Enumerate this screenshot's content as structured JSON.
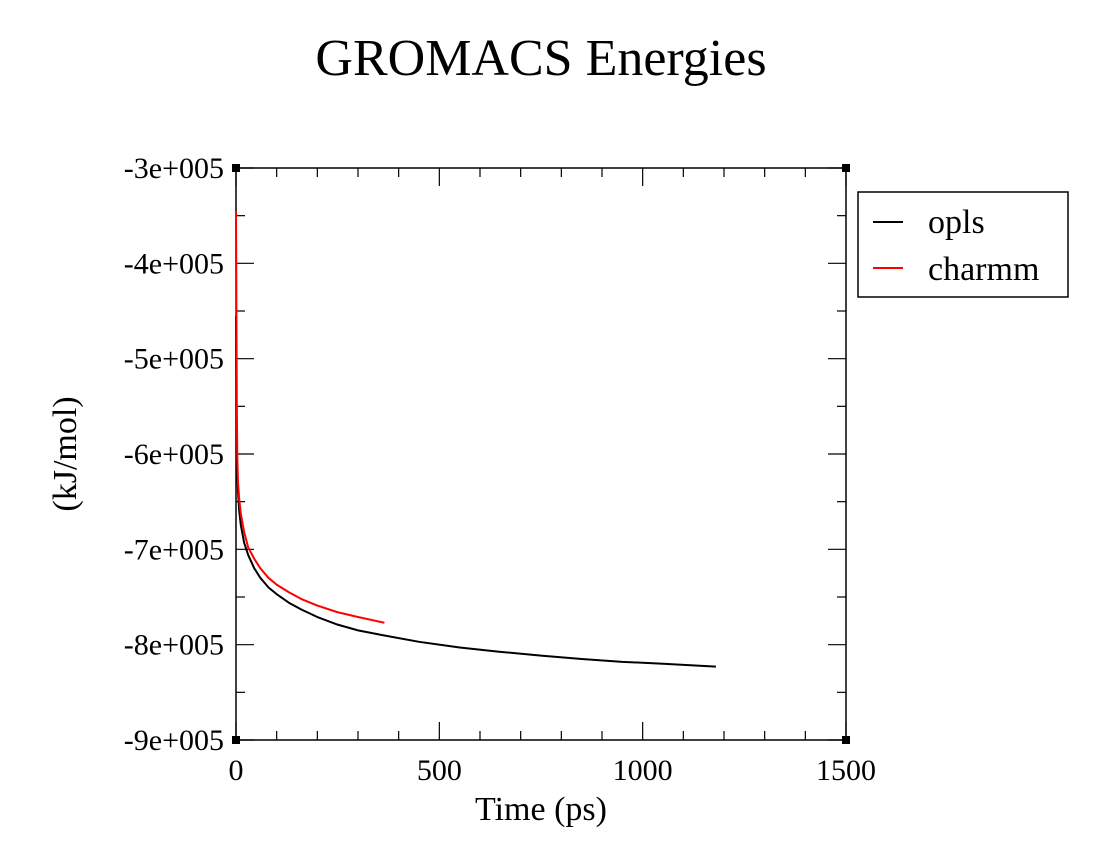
{
  "chart_data": {
    "type": "line",
    "title": "GROMACS Energies",
    "xlabel": "Time (ps)",
    "ylabel": "(kJ/mol)",
    "xlim": [
      0,
      1500
    ],
    "ylim": [
      -900000,
      -300000
    ],
    "x_ticks": [
      0,
      500,
      1000,
      1500
    ],
    "x_tick_labels": [
      "0",
      "500",
      "1000",
      "1500"
    ],
    "y_ticks": [
      -300000,
      -400000,
      -500000,
      -600000,
      -700000,
      -800000,
      -900000
    ],
    "y_tick_labels": [
      "-3e+005",
      "-4e+005",
      "-5e+005",
      "-6e+005",
      "-7e+005",
      "-8e+005",
      "-9e+005"
    ],
    "grid": false,
    "legend_position": "right",
    "series": [
      {
        "name": "opls",
        "color": "#000000",
        "x": [
          0,
          1,
          2,
          3,
          5,
          8,
          12,
          20,
          30,
          45,
          60,
          80,
          100,
          130,
          160,
          200,
          250,
          300,
          360,
          450,
          550,
          650,
          750,
          850,
          950,
          1050,
          1180
        ],
        "y": [
          -455000,
          -550000,
          -595000,
          -620000,
          -640000,
          -660000,
          -675000,
          -693000,
          -706000,
          -720000,
          -730000,
          -740000,
          -747000,
          -756000,
          -763000,
          -771000,
          -779000,
          -785000,
          -790000,
          -797000,
          -803000,
          -807500,
          -811500,
          -815000,
          -818000,
          -820000,
          -823000
        ]
      },
      {
        "name": "charmm",
        "color": "#ff0000",
        "x": [
          0,
          1,
          2,
          3,
          5,
          8,
          12,
          20,
          30,
          45,
          60,
          80,
          100,
          130,
          160,
          200,
          250,
          300,
          365
        ],
        "y": [
          -345000,
          -450000,
          -545000,
          -600000,
          -630000,
          -648000,
          -663000,
          -682000,
          -698000,
          -710000,
          -720000,
          -730000,
          -737000,
          -745000,
          -752000,
          -759000,
          -766000,
          -771000,
          -777000
        ]
      }
    ]
  }
}
